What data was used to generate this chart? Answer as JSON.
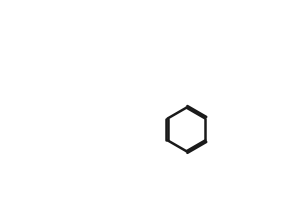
{
  "bg_color": "#ffffff",
  "line_color": "#1a1a1a",
  "text_color": "#1a1a2e",
  "lw": 1.8,
  "fontsize": 9,
  "figsize": [
    3.06,
    2.0
  ],
  "dpi": 100
}
